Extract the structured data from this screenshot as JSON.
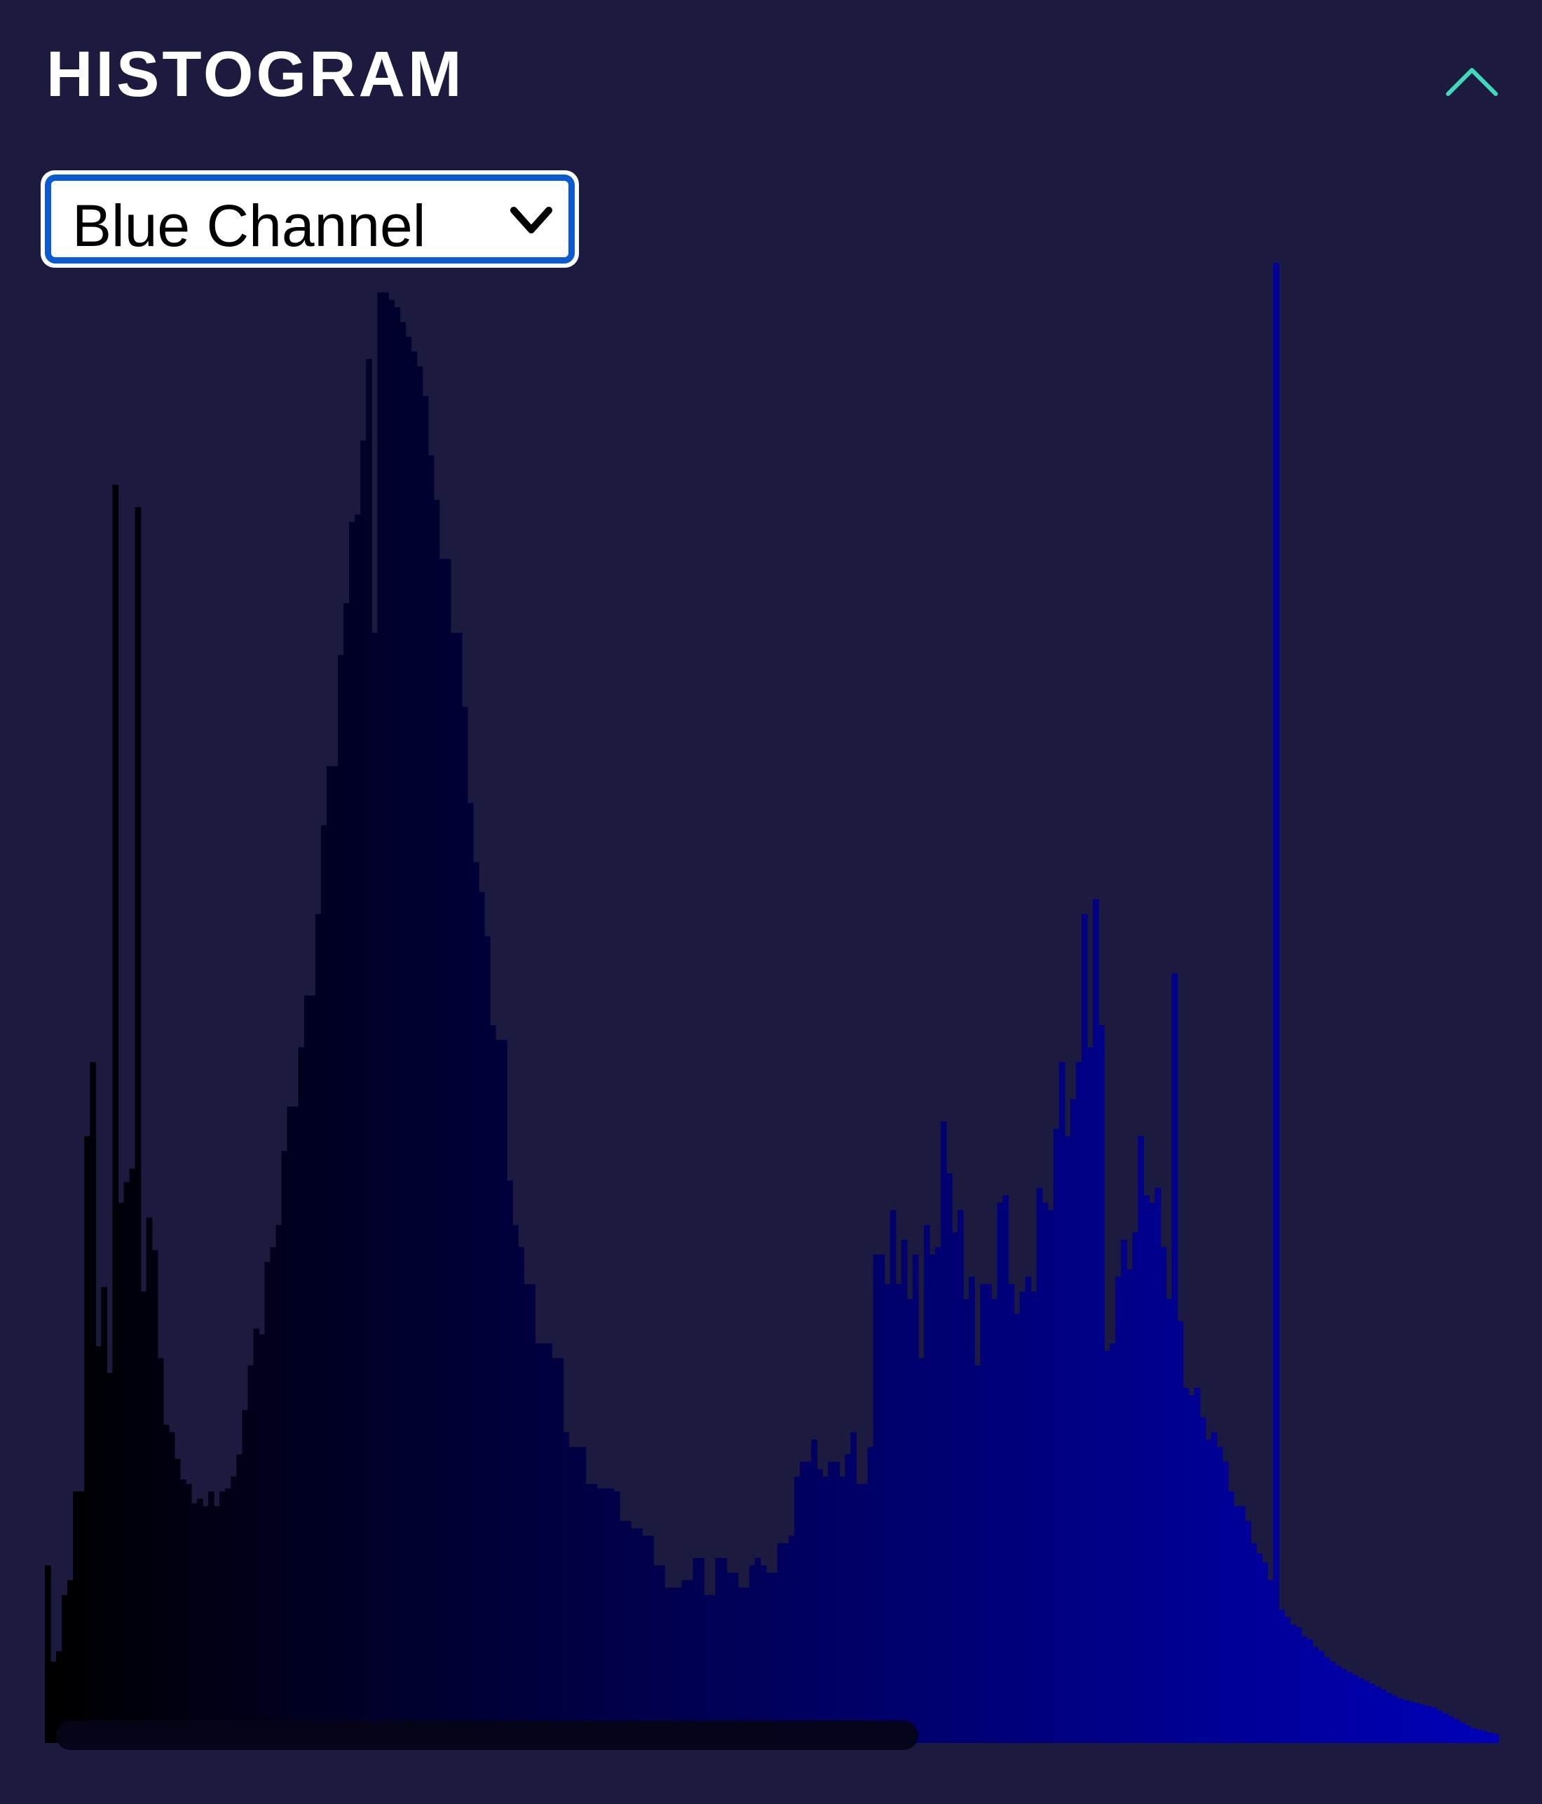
{
  "panel": {
    "title": "HISTOGRAM",
    "collapse_icon": "chevron-up-icon",
    "accent_color": "#3ddbb7",
    "background_color": "#1c1a3f"
  },
  "channel_select": {
    "selected": "Blue Channel",
    "icon": "chevron-down-icon",
    "border_color": "#0a5bd3"
  },
  "chart_data": {
    "type": "bar",
    "title": "",
    "xlabel": "",
    "ylabel": "",
    "x_range": [
      0,
      255
    ],
    "ylim": [
      0,
      1000
    ],
    "grid": false,
    "legend": "none",
    "bar_color_start": "#000000",
    "bar_color_end": "#0000b8",
    "values": [
      120,
      55,
      62,
      100,
      110,
      170,
      170,
      410,
      460,
      268,
      308,
      250,
      262,
      365,
      379,
      388,
      835,
      305,
      355,
      333,
      260,
      215,
      210,
      192,
      178,
      175,
      162,
      165,
      160,
      170,
      160,
      170,
      172,
      180,
      195,
      225,
      255,
      280,
      276,
      325,
      335,
      350,
      400,
      430,
      430,
      470,
      505,
      505,
      560,
      620,
      660,
      660,
      735,
      770,
      825,
      830,
      880,
      935,
      935,
      980,
      980,
      975,
      970,
      960,
      950,
      940,
      930,
      910,
      870,
      840,
      800,
      800,
      750,
      750,
      700,
      635,
      595,
      575,
      545,
      485,
      475,
      475,
      380,
      350,
      335,
      310,
      310,
      270,
      270,
      270,
      260,
      260,
      210,
      200,
      200,
      200,
      175,
      175,
      172,
      172,
      172,
      170,
      150,
      150,
      145,
      145,
      140,
      140,
      120,
      120,
      105,
      105,
      105,
      110,
      110,
      125,
      125,
      100,
      100,
      125,
      125,
      115,
      115,
      105,
      105,
      120,
      125,
      120,
      115,
      115,
      135,
      135,
      140,
      180,
      190,
      190,
      205,
      185,
      180,
      190,
      190,
      180,
      195,
      210,
      175,
      175,
      200,
      330,
      330,
      310,
      360,
      310,
      340,
      300,
      330,
      260,
      350,
      330,
      335,
      420,
      385,
      345,
      360,
      300,
      315,
      255,
      310,
      310,
      300,
      365,
      370,
      310,
      290,
      305,
      315,
      305,
      375,
      365,
      360,
      415,
      460,
      410,
      435,
      460,
      560,
      470,
      570,
      485,
      265,
      270,
      315,
      340,
      320,
      345,
      410,
      370,
      365,
      375,
      335,
      300,
      280,
      285,
      240,
      235,
      240,
      220,
      205,
      210,
      200,
      190,
      170,
      160,
      160,
      150,
      135,
      128,
      122,
      110,
      100,
      90,
      85,
      80,
      78,
      72,
      70,
      65,
      62,
      58,
      55,
      52,
      50,
      48,
      46,
      44,
      42,
      40,
      38,
      36,
      34,
      32,
      30,
      29,
      28,
      27,
      26,
      25,
      24,
      22,
      20,
      18,
      16,
      14,
      12,
      10,
      9,
      8,
      7,
      6
    ],
    "spikes": [
      {
        "bin": 12,
        "value": 850
      },
      {
        "bin": 58,
        "value": 750
      },
      {
        "bin": 200,
        "value": 520
      },
      {
        "bin": 218,
        "value": 1000
      }
    ]
  }
}
